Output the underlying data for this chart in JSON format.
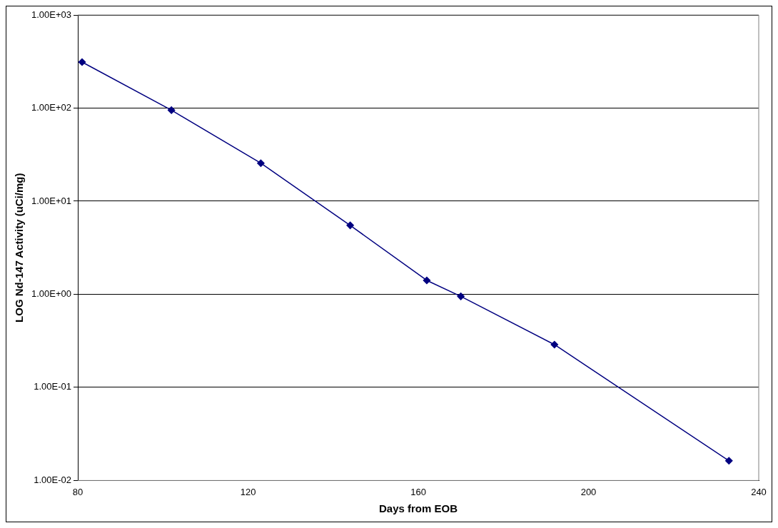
{
  "chart_data": {
    "type": "line",
    "xlabel": "Days from EOB",
    "ylabel": "LOG Nd-147 Activity (uCi/mg)",
    "x": [
      81,
      102,
      123,
      144,
      162,
      170,
      192,
      233
    ],
    "series": [
      {
        "color": "#000080",
        "values": [
          312,
          95,
          25.6,
          5.5,
          1.41,
          0.95,
          0.288,
          0.0163
        ]
      }
    ],
    "xlim": [
      80,
      240
    ],
    "xticks": [
      80,
      120,
      160,
      200,
      240
    ],
    "ylim": [
      0.01,
      1000
    ],
    "yticks": [
      {
        "value": 0.01,
        "label": "1.00E-02"
      },
      {
        "value": 0.1,
        "label": "1.00E-01"
      },
      {
        "value": 1,
        "label": "1.00E+00"
      },
      {
        "value": 10,
        "label": "1.00E+01"
      },
      {
        "value": 100,
        "label": "1.00E+02"
      },
      {
        "value": 1000,
        "label": "1.00E+03"
      }
    ],
    "log": "y",
    "grid": "y",
    "legend": false,
    "marker": "diamond",
    "line_style": "solid"
  }
}
